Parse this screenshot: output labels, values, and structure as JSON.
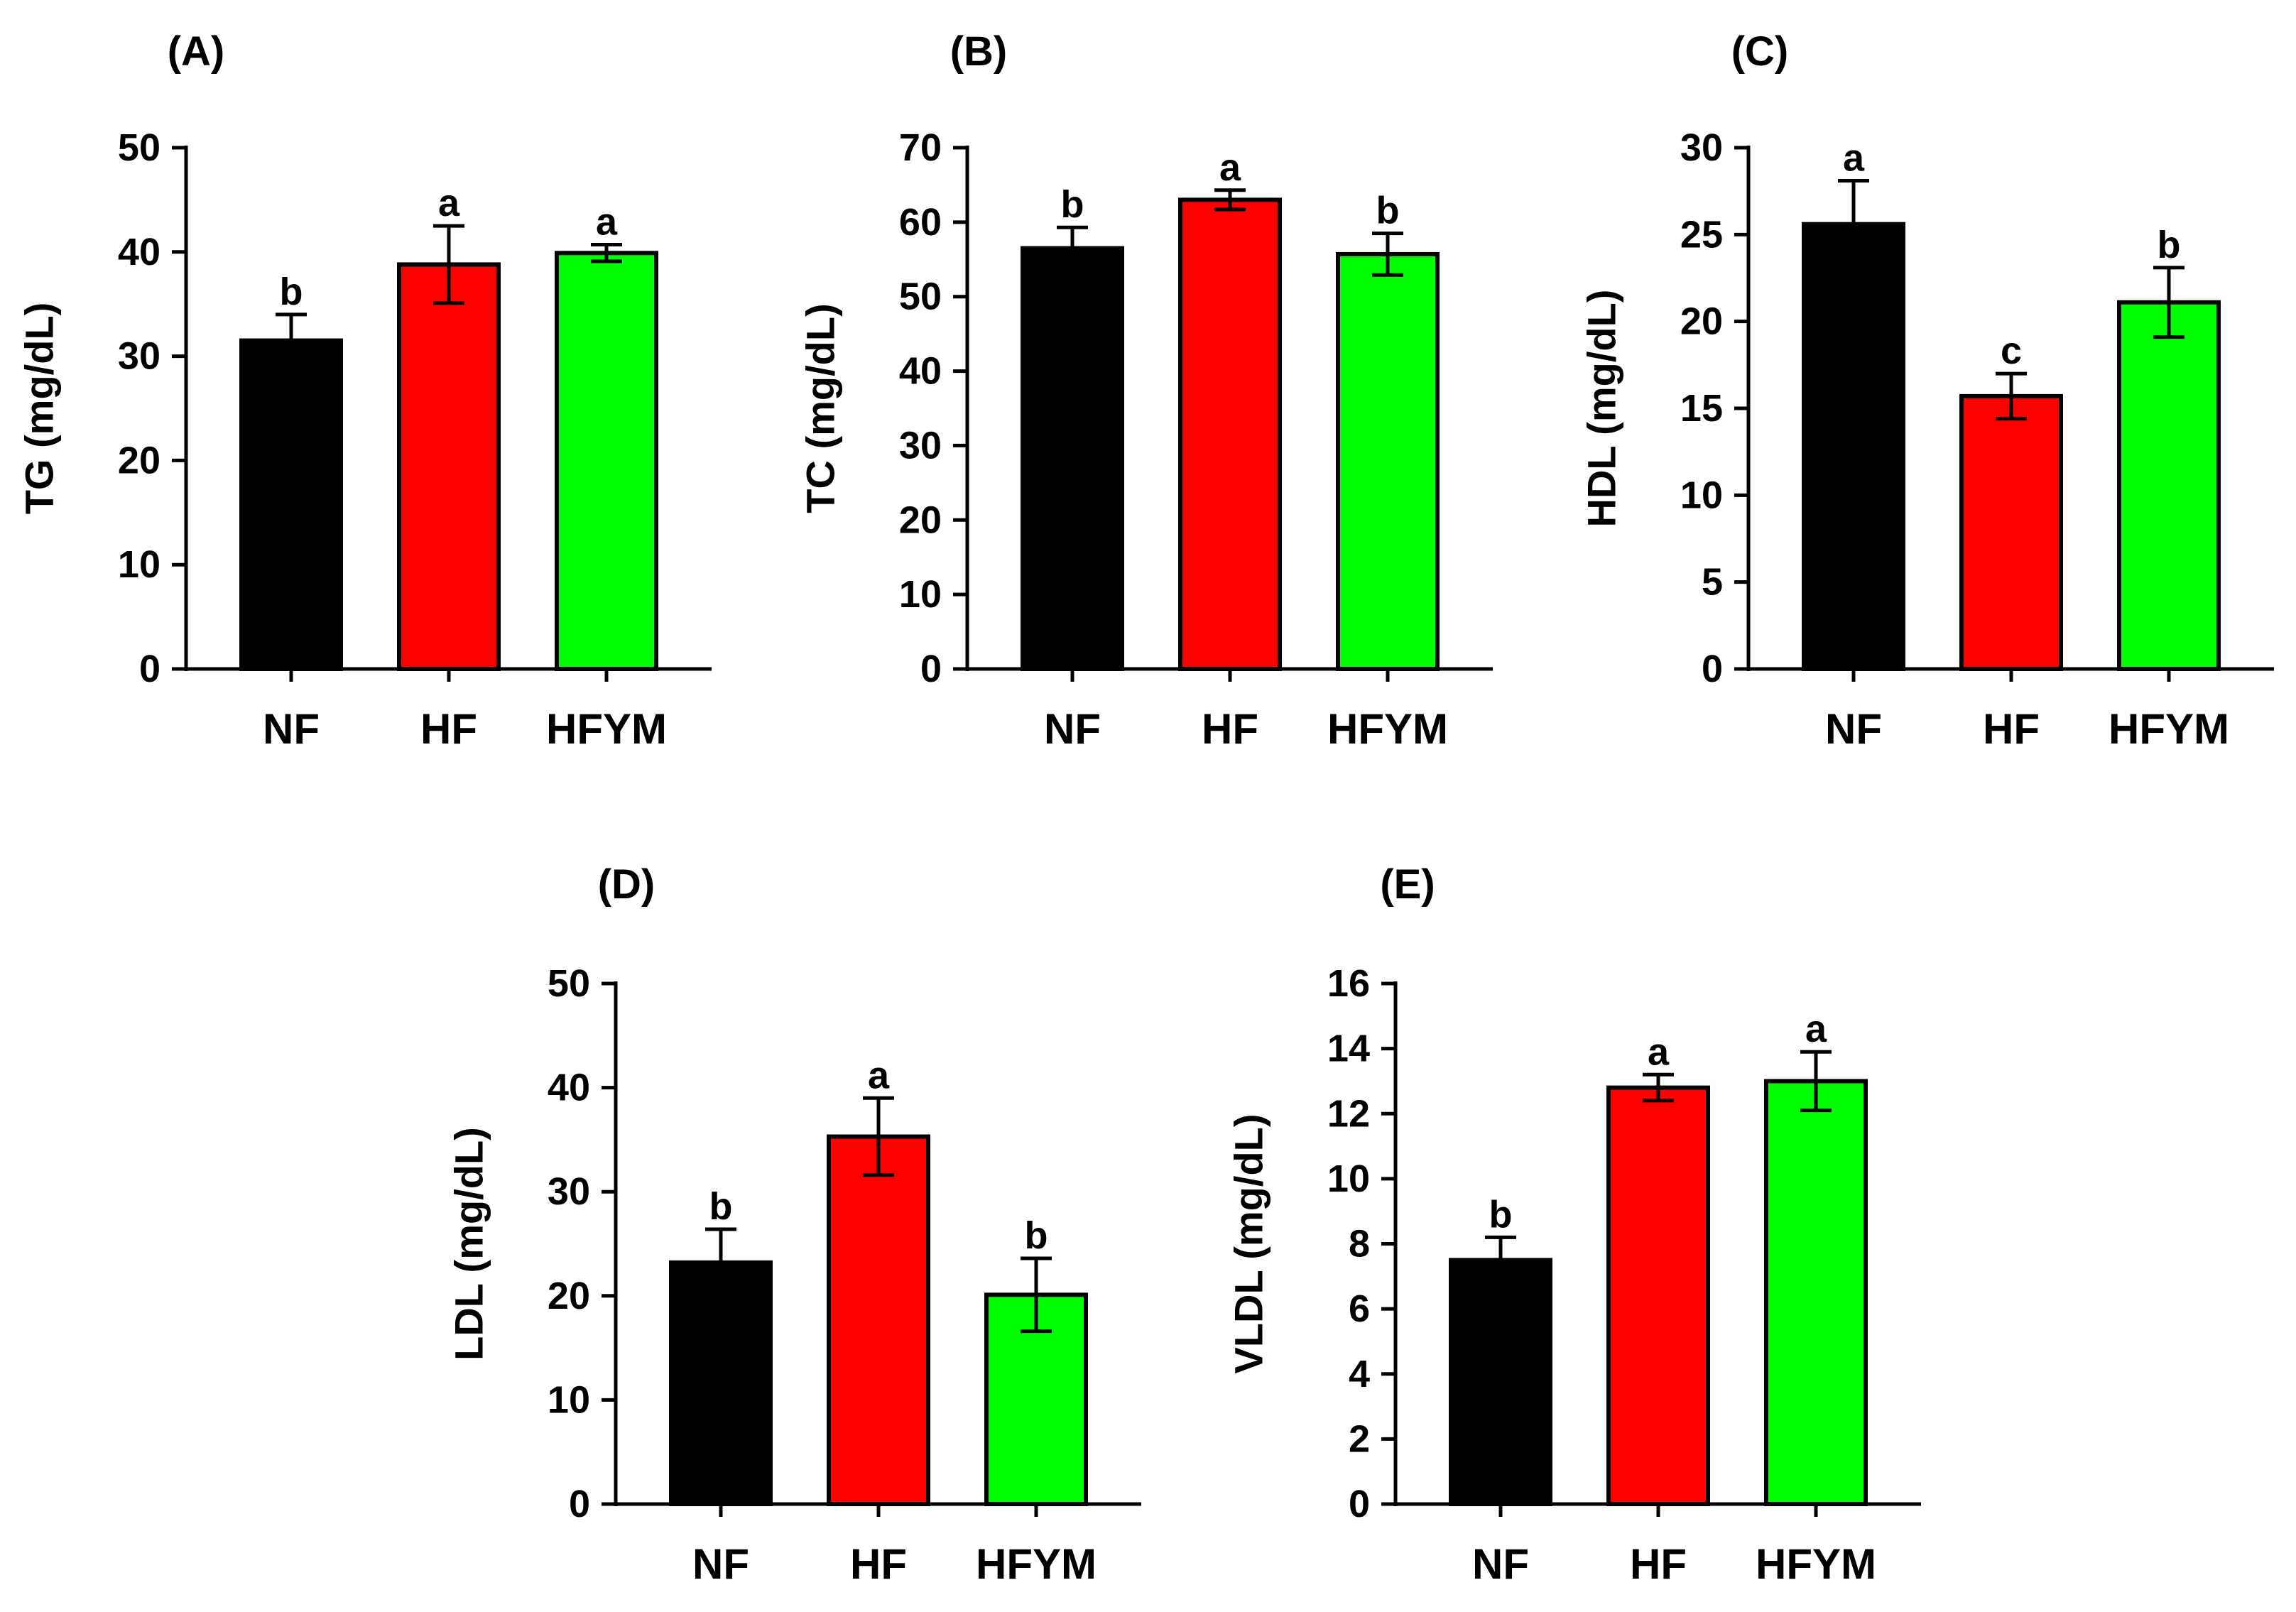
{
  "figure": {
    "colors": {
      "NF": "#000000",
      "HF": "#ff0000",
      "HFYM": "#00ff00"
    }
  },
  "chart_data": [
    {
      "type": "bar",
      "panel": "(A)",
      "ylabel": "TG (mg/dL)",
      "categories": [
        "NF",
        "HF",
        "HFYM"
      ],
      "values": [
        31.5,
        38.8,
        39.9
      ],
      "errors": [
        2.5,
        3.7,
        0.8
      ],
      "letters": [
        "b",
        "a",
        "a"
      ],
      "ylim": [
        0,
        50
      ],
      "yticks": [
        0,
        10,
        20,
        30,
        40,
        50
      ]
    },
    {
      "type": "bar",
      "panel": "(B)",
      "ylabel": "TC (mg/dL)",
      "categories": [
        "NF",
        "HF",
        "HFYM"
      ],
      "values": [
        56.5,
        63.0,
        55.7
      ],
      "errors": [
        2.8,
        1.3,
        2.8
      ],
      "letters": [
        "b",
        "a",
        "b"
      ],
      "ylim": [
        0,
        70
      ],
      "yticks": [
        0,
        10,
        20,
        30,
        40,
        50,
        60,
        70
      ]
    },
    {
      "type": "bar",
      "panel": "(C)",
      "ylabel": "HDL (mg/dL)",
      "categories": [
        "NF",
        "HF",
        "HFYM"
      ],
      "values": [
        25.6,
        15.7,
        21.1
      ],
      "errors": [
        2.5,
        1.3,
        2.0
      ],
      "letters": [
        "a",
        "c",
        "b"
      ],
      "ylim": [
        0,
        30
      ],
      "yticks": [
        0,
        5,
        10,
        15,
        20,
        25,
        30
      ]
    },
    {
      "type": "bar",
      "panel": "(D)",
      "ylabel": "LDL (mg/dL)",
      "categories": [
        "NF",
        "HF",
        "HFYM"
      ],
      "values": [
        23.2,
        35.3,
        20.1
      ],
      "errors": [
        3.2,
        3.7,
        3.5
      ],
      "letters": [
        "b",
        "a",
        "b"
      ],
      "ylim": [
        0,
        50
      ],
      "yticks": [
        0,
        10,
        20,
        30,
        40,
        50
      ]
    },
    {
      "type": "bar",
      "panel": "(E)",
      "ylabel": "VLDL (mg/dL)",
      "categories": [
        "NF",
        "HF",
        "HFYM"
      ],
      "values": [
        7.5,
        12.8,
        13.0
      ],
      "errors": [
        0.7,
        0.4,
        0.9
      ],
      "letters": [
        "b",
        "a",
        "a"
      ],
      "ylim": [
        0,
        16
      ],
      "yticks": [
        0,
        2,
        4,
        6,
        8,
        10,
        12,
        14,
        16
      ]
    }
  ]
}
